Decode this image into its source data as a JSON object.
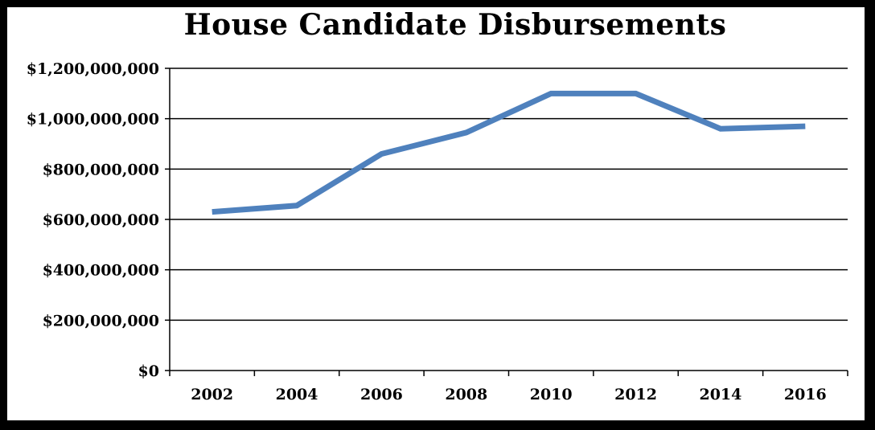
{
  "chart_data": {
    "type": "line",
    "title": "House Candidate Disbursements",
    "xlabel": "",
    "ylabel": "",
    "categories": [
      "2002",
      "2004",
      "2006",
      "2008",
      "2010",
      "2012",
      "2014",
      "2016"
    ],
    "series": [
      {
        "values": [
          630000000,
          655000000,
          860000000,
          945000000,
          1100000000,
          1100000000,
          960000000,
          970000000
        ]
      }
    ],
    "y_ticks": [
      0,
      200000000,
      400000000,
      600000000,
      800000000,
      1000000000,
      1200000000
    ],
    "y_tick_labels": [
      "$0",
      "$200,000,000",
      "$400,000,000",
      "$600,000,000",
      "$800,000,000",
      "$1,000,000,000",
      "$1,200,000,000"
    ],
    "ylim": [
      0,
      1200000000
    ],
    "grid": "horizontal",
    "legend": "none",
    "line_color": "#4f81bd"
  }
}
